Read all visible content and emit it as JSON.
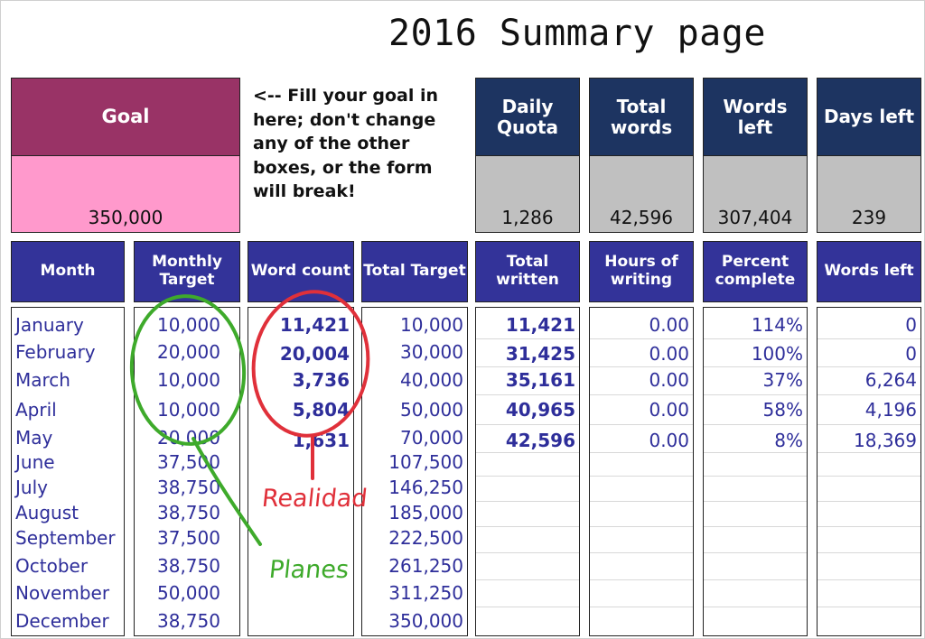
{
  "title": "2016 Summary page",
  "goal": {
    "label": "Goal",
    "value": "350,000"
  },
  "note": "<-- Fill your goal in here; don't change any of the other boxes, or the form will break!",
  "stats": [
    {
      "label": "Daily Quota",
      "value": "1,286"
    },
    {
      "label": "Total words",
      "value": "42,596"
    },
    {
      "label": "Words left",
      "value": "307,404"
    },
    {
      "label": "Days left",
      "value": "239"
    }
  ],
  "columns": [
    "Month",
    "Monthly Target",
    "Word count",
    "Total Target",
    "Total written",
    "Hours of writing",
    "Percent complete",
    "Words left"
  ],
  "months": [
    "January",
    "February",
    "March",
    "April",
    "May",
    "June",
    "July",
    "August",
    "September",
    "October",
    "November",
    "December"
  ],
  "monthly_target": [
    "10,000",
    "20,000",
    "10,000",
    "10,000",
    "20,000",
    "37,500",
    "38,750",
    "38,750",
    "37,500",
    "38,750",
    "50,000",
    "38,750"
  ],
  "word_count": [
    "11,421",
    "20,004",
    "3,736",
    "5,804",
    "1,631"
  ],
  "total_target": [
    "10,000",
    "30,000",
    "40,000",
    "50,000",
    "70,000",
    "107,500",
    "146,250",
    "185,000",
    "222,500",
    "261,250",
    "311,250",
    "350,000"
  ],
  "total_written": [
    "11,421",
    "31,425",
    "35,161",
    "40,965",
    "42,596"
  ],
  "hours_of_writing": [
    "0.00",
    "0.00",
    "0.00",
    "0.00",
    "0.00"
  ],
  "percent_complete": [
    "114%",
    "100%",
    "37%",
    "58%",
    "8%"
  ],
  "words_left": [
    "0",
    "0",
    "6,264",
    "4,196",
    "18,369"
  ],
  "annotations": {
    "red": "Realidad",
    "green": "Planes"
  },
  "colors": {
    "navy": "#1d3461",
    "blue": "#333399",
    "maroon": "#993366",
    "pink": "#ff99cc",
    "grey": "#c0c0c0",
    "data_text": "#2e2e9a",
    "red_ink": "#e0303a",
    "green_ink": "#3eaa2b"
  }
}
